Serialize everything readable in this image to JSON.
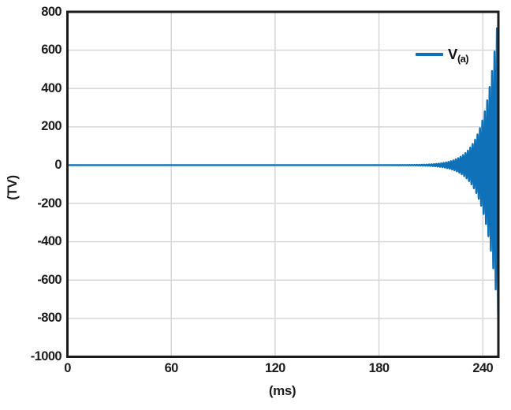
{
  "figure": {
    "background": "#ffffff",
    "legend": {
      "label_main": "V",
      "label_sub": "(a)"
    }
  },
  "chart_data": {
    "type": "line",
    "title": "",
    "xlabel": "(ms)",
    "ylabel": "(TV)",
    "xlim": [
      0,
      249
    ],
    "ylim": [
      -1000,
      800
    ],
    "xticks": [
      0,
      60,
      120,
      180,
      240
    ],
    "yticks": [
      800,
      600,
      400,
      200,
      0,
      -200,
      -400,
      -600,
      -800,
      -1000
    ],
    "grid": true,
    "legend_position": "upper-right-inside",
    "colors": {
      "grid": "#d7d7d7",
      "axis": "#1b1b1b",
      "text": "#1d1d1d"
    },
    "series": [
      {
        "name": "V_(a)",
        "color": "#0f72b9",
        "description": "Oscillation flat near 0 V, then exponentially growing envelope starting ~210 ms, reaching about +790/-840 at the right edge (unstable oscillator start-up)",
        "signal": {
          "kind": "exponentially-growing-sine",
          "period_ms": 1.4,
          "t_start_ms": 0,
          "t_end_ms": 249,
          "end_amplitude": 800,
          "growth_time_constant_ms": 7.5
        },
        "envelope_samples": {
          "t_ms": [
            0,
            60,
            120,
            180,
            200,
            210,
            220,
            230,
            240,
            245,
            249
          ],
          "amplitude": [
            0,
            0,
            0,
            0.1,
            1.2,
            4.4,
            16.7,
            63,
            241,
            469,
            800
          ]
        }
      }
    ]
  }
}
